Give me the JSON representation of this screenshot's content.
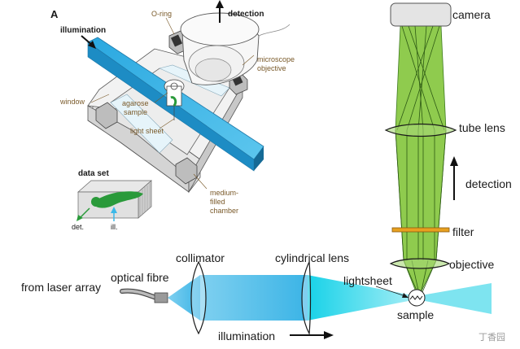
{
  "panel_a": {
    "panel_letter": "A",
    "illumination": "illumination",
    "o_ring": "O-ring",
    "detection": "detection",
    "microscope_objective_1": "microscope",
    "microscope_objective_2": "objective",
    "window": "window",
    "agarose_sample_1": "agarose",
    "agarose_sample_2": "sample",
    "light_sheet": "light sheet",
    "medium_chamber_1": "medium-",
    "medium_chamber_2": "filled",
    "medium_chamber_3": "chamber"
  },
  "data_set": {
    "title": "data set",
    "det": "det.",
    "ill": "ill."
  },
  "detection_path": {
    "camera": "camera",
    "tube_lens": "tube lens",
    "detection": "detection",
    "filter": "filter",
    "objective": "objective"
  },
  "illumination_path": {
    "from_laser_array": "from laser array",
    "optical_fibre": "optical fibre",
    "collimator": "collimator",
    "cylindrical_lens": "cylindrical lens",
    "lightsheet": "lightsheet",
    "sample": "sample",
    "illumination": "illumination"
  },
  "watermark": "丁香园",
  "colors": {
    "beam_blue": "#3bb8e8",
    "lightsheet_cyan": "#2ad8ec",
    "detection_green": "#7cc142",
    "dark_green": "#3d7a1f",
    "filter_orange": "#e8a020",
    "chamber_gray": "#d9d9d9"
  }
}
